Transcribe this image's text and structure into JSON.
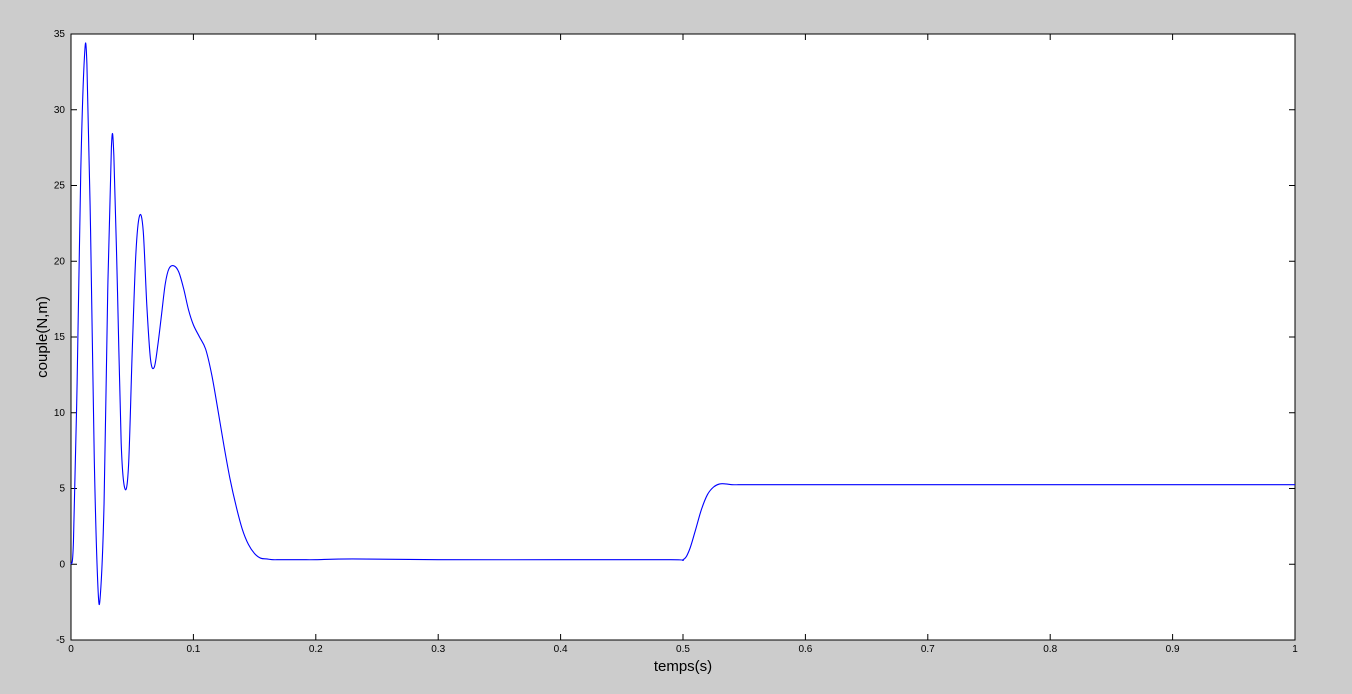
{
  "chart_data": {
    "type": "line",
    "title": "",
    "xlabel": "temps(s)",
    "ylabel": "couple(N,m)",
    "xlim": [
      0,
      1
    ],
    "ylim": [
      -5,
      35
    ],
    "x_ticks": [
      0,
      0.1,
      0.2,
      0.3,
      0.4,
      0.5,
      0.6,
      0.7,
      0.8,
      0.9,
      1
    ],
    "x_tick_labels": [
      "0",
      "0.1",
      "0.2",
      "0.3",
      "0.4",
      "0.5",
      "0.6",
      "0.7",
      "0.8",
      "0.9",
      "1"
    ],
    "y_ticks": [
      -5,
      0,
      5,
      10,
      15,
      20,
      25,
      30,
      35
    ],
    "y_tick_labels": [
      "-5",
      "0",
      "5",
      "10",
      "15",
      "20",
      "25",
      "30",
      "35"
    ],
    "grid": false,
    "legend": "none",
    "series": [
      {
        "color": "#0000ff",
        "x": [
          0,
          0.002,
          0.005,
          0.008,
          0.011,
          0.013,
          0.016,
          0.019,
          0.022,
          0.024,
          0.027,
          0.03,
          0.033,
          0.035,
          0.038,
          0.041,
          0.044,
          0.047,
          0.05,
          0.053,
          0.056,
          0.059,
          0.062,
          0.065,
          0.068,
          0.071,
          0.074,
          0.077,
          0.08,
          0.084,
          0.088,
          0.092,
          0.096,
          0.1,
          0.105,
          0.11,
          0.115,
          0.12,
          0.125,
          0.13,
          0.135,
          0.14,
          0.145,
          0.15,
          0.155,
          0.16,
          0.165,
          0.17,
          0.175,
          0.18,
          0.185,
          0.19,
          0.2,
          0.23,
          0.3,
          0.4,
          0.49,
          0.5,
          0.505,
          0.51,
          0.515,
          0.52,
          0.525,
          0.53,
          0.535,
          0.54,
          0.545,
          0.55,
          0.6,
          0.7,
          0.8,
          0.9,
          1.0
        ],
        "y": [
          0,
          1.5,
          12,
          26,
          33.5,
          33,
          22,
          7,
          -1.5,
          -2,
          4,
          18,
          27.5,
          27,
          18,
          8,
          5,
          6.5,
          14,
          20.5,
          23,
          22,
          17,
          13.5,
          13,
          14.5,
          16.5,
          18.5,
          19.5,
          19.7,
          19.3,
          18.2,
          16.8,
          15.8,
          15,
          14.2,
          12.5,
          10.2,
          7.8,
          5.6,
          3.8,
          2.3,
          1.3,
          0.7,
          0.4,
          0.35,
          0.3,
          0.3,
          0.3,
          0.3,
          0.3,
          0.3,
          0.3,
          0.35,
          0.3,
          0.3,
          0.3,
          0.3,
          0.9,
          2.2,
          3.6,
          4.6,
          5.1,
          5.3,
          5.3,
          5.25,
          5.25,
          5.25,
          5.25,
          5.25,
          5.25,
          5.25,
          5.25
        ]
      }
    ]
  }
}
